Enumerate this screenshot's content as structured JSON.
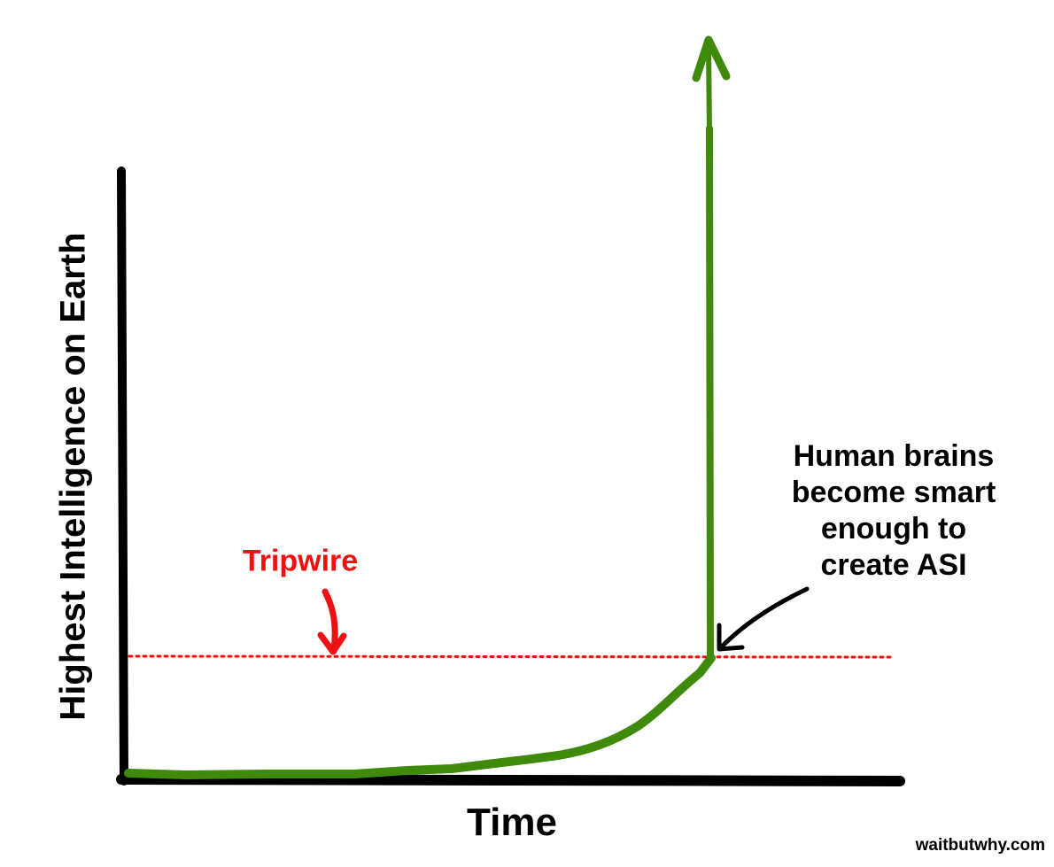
{
  "diagram": {
    "y_axis_label": "Highest Intelligence on Earth",
    "x_axis_label": "Time",
    "tripwire_label": "Tripwire",
    "annotation_lines": [
      "Human brains",
      "become smart",
      "enough to",
      "create ASI"
    ],
    "watermark": "waitbutwhy.com"
  },
  "colors": {
    "curve": "#3f8a0b",
    "tripwire": "#ee1111",
    "axes": "#000000",
    "text": "#000000"
  }
}
